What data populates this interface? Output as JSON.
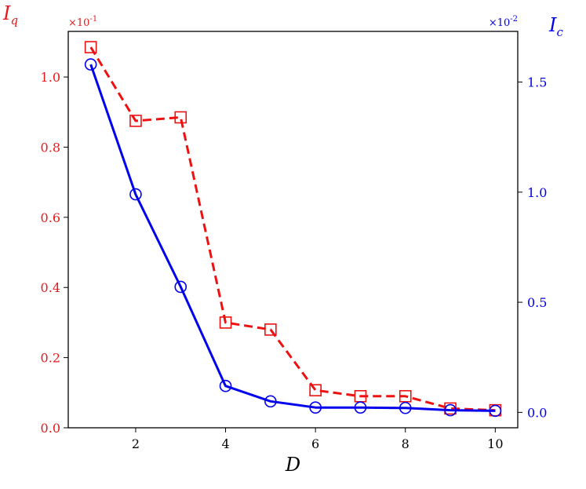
{
  "chart_data": {
    "type": "line",
    "xlabel": "D",
    "x": [
      1,
      2,
      3,
      4,
      5,
      6,
      7,
      8,
      9,
      10
    ],
    "xlim": [
      0.5,
      10.5
    ],
    "xticks": [
      "2",
      "4",
      "6",
      "8",
      "10"
    ],
    "grid": false,
    "left_axis": {
      "label": "I_q",
      "color": "#e41a1c",
      "offset_text": "×10^-1",
      "ylim": [
        0.0,
        1.13
      ],
      "ticks": [
        "0.0",
        "0.2",
        "0.4",
        "0.6",
        "0.8",
        "1.0"
      ]
    },
    "right_axis": {
      "label": "I_c",
      "color": "#0000ee",
      "offset_text": "×10^-2",
      "ylim": [
        -0.07,
        1.73
      ],
      "ticks": [
        "0.0",
        "0.5",
        "1.0",
        "1.5"
      ]
    },
    "series": [
      {
        "axis": "left",
        "color": "#ee1111",
        "line": "dashed",
        "marker": "square",
        "values": [
          1.085,
          0.875,
          0.885,
          0.3,
          0.28,
          0.107,
          0.09,
          0.09,
          0.055,
          0.05
        ]
      },
      {
        "axis": "right",
        "color": "#0000ee",
        "line": "solid",
        "marker": "circle",
        "values": [
          1.58,
          0.99,
          0.57,
          0.12,
          0.05,
          0.022,
          0.022,
          0.02,
          0.01,
          0.007
        ]
      }
    ]
  }
}
